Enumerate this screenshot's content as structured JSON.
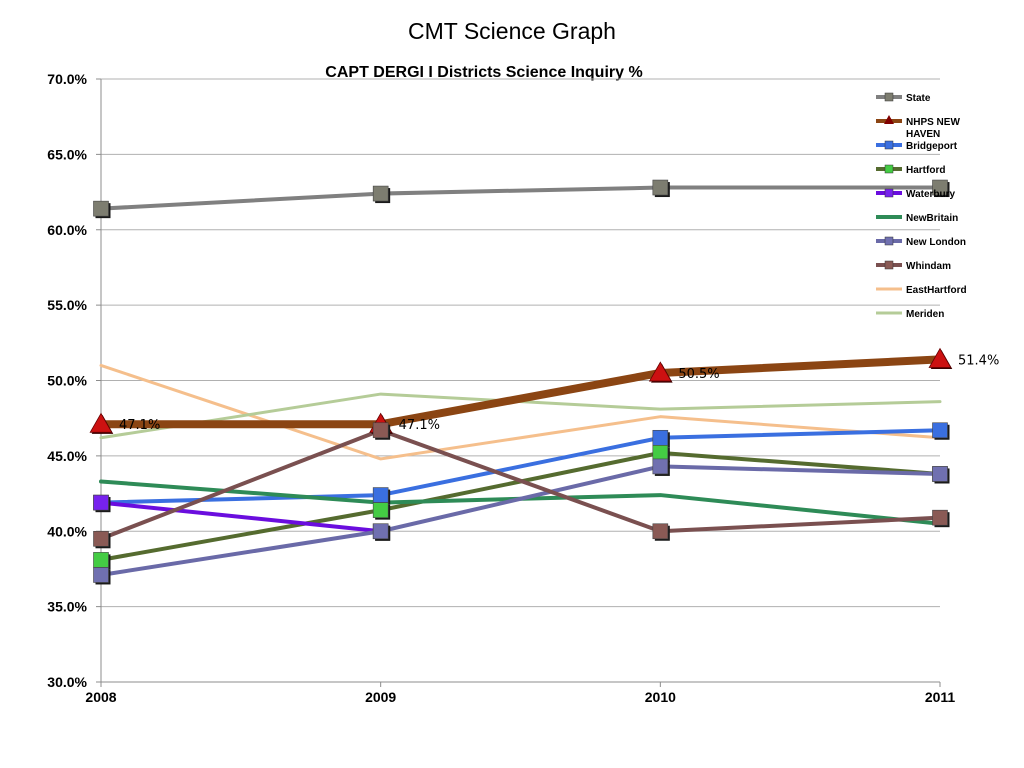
{
  "slide_title": "CMT Science Graph",
  "chart_data": {
    "type": "line",
    "title": "CAPT DERGI I Districts Science Inquiry %",
    "xlabel": "",
    "ylabel": "",
    "categories": [
      "2008",
      "2009",
      "2010",
      "2011"
    ],
    "ylim": [
      30,
      70
    ],
    "yticks": [
      "30.0%",
      "35.0%",
      "40.0%",
      "45.0%",
      "50.0%",
      "55.0%",
      "60.0%",
      "65.0%",
      "70.0%"
    ],
    "grid": true,
    "legend_position": "top-right",
    "series": [
      {
        "name": "State",
        "values": [
          61.4,
          62.4,
          62.8,
          62.8
        ],
        "color": "#808080",
        "marker": "square",
        "marker_color": "#7d7d70",
        "width": 4
      },
      {
        "name": "NHPS NEW HAVEN",
        "values": [
          47.1,
          47.1,
          50.5,
          51.4
        ],
        "color": "#8b4513",
        "marker": "triangle",
        "marker_color": "#cc1111",
        "width": 8,
        "labels": [
          "47.1%",
          "47.1%",
          "50.5%",
          "51.4%"
        ]
      },
      {
        "name": "Bridgeport",
        "values": [
          41.9,
          42.4,
          46.2,
          46.7
        ],
        "color": "#3a6fe0",
        "marker": "square",
        "marker_color": "#3a6fe0",
        "width": 4
      },
      {
        "name": "Hartford",
        "values": [
          38.1,
          41.4,
          45.2,
          43.8
        ],
        "color": "#556b2f",
        "marker": "square",
        "marker_color": "#44cc44",
        "width": 4
      },
      {
        "name": "Waterbury",
        "values": [
          41.9,
          40.0,
          null,
          null
        ],
        "color": "#6a0dde",
        "marker": "square",
        "marker_color": "#7722ee",
        "width": 4
      },
      {
        "name": "NewBritain",
        "values": [
          43.3,
          41.9,
          42.4,
          40.5
        ],
        "color": "#2e8b57",
        "marker": "none",
        "marker_color": "#2e8b57",
        "width": 4
      },
      {
        "name": "New London",
        "values": [
          37.1,
          40.0,
          44.3,
          43.8
        ],
        "color": "#6a6aa8",
        "marker": "square",
        "marker_color": "#7070b0",
        "width": 4
      },
      {
        "name": "Whindam",
        "values": [
          39.5,
          46.7,
          40.0,
          40.9
        ],
        "color": "#7a5050",
        "marker": "square",
        "marker_color": "#8a5a55",
        "width": 4
      },
      {
        "name": "EastHartford",
        "values": [
          51.0,
          44.8,
          47.6,
          46.2
        ],
        "color": "#f5bf8c",
        "marker": "none",
        "marker_color": "#f5bf8c",
        "width": 3
      },
      {
        "name": "Meriden",
        "values": [
          46.2,
          49.1,
          48.1,
          48.6
        ],
        "color": "#b5cc98",
        "marker": "none",
        "marker_color": "#b5cc98",
        "width": 3
      }
    ]
  }
}
